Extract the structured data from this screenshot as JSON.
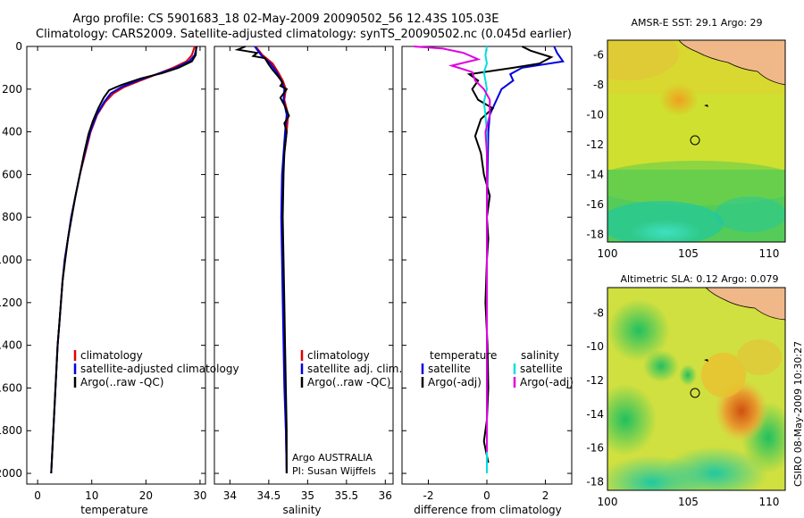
{
  "title": {
    "line1": "Argo profile: CS 5901683_18 02-May-2009 20090502_56 12.43S 105.03E",
    "line2": "Climatology: CARS2009. Satellite-adjusted climatology: synTS_20090502.nc (0.045d earlier)"
  },
  "side_label": "CSIRO 08-May-2009 10:30:27",
  "chart_data": [
    {
      "type": "line",
      "id": "temperature",
      "xlabel": "temperature",
      "xlim": [
        -2,
        31
      ],
      "ylim": [
        2050,
        0
      ],
      "xticks": [
        0,
        10,
        20,
        30
      ],
      "yticks": [
        0,
        200,
        400,
        600,
        800,
        1000,
        1200,
        1400,
        1600,
        1800,
        2000
      ],
      "legend": [
        "climatology",
        "satellite-adjusted climatology",
        "Argo(..raw -QC)"
      ],
      "legend_colors": [
        "#e00000",
        "#0000e0",
        "#000000"
      ],
      "series": [
        {
          "name": "climatology",
          "color": "#e00000",
          "points": [
            [
              29,
              0
            ],
            [
              28.5,
              40
            ],
            [
              27.5,
              70
            ],
            [
              25,
              100
            ],
            [
              22,
              130
            ],
            [
              19,
              160
            ],
            [
              16,
              190
            ],
            [
              14,
              220
            ],
            [
              12.5,
              260
            ],
            [
              11,
              320
            ],
            [
              9.8,
              400
            ],
            [
              8.8,
              500
            ],
            [
              7.8,
              600
            ],
            [
              7,
              700
            ],
            [
              6.2,
              800
            ],
            [
              5.6,
              900
            ],
            [
              5,
              1000
            ],
            [
              4.6,
              1100
            ],
            [
              4.3,
              1200
            ],
            [
              4,
              1300
            ],
            [
              3.7,
              1400
            ],
            [
              3.5,
              1500
            ],
            [
              3.3,
              1600
            ],
            [
              3.1,
              1700
            ],
            [
              2.9,
              1800
            ],
            [
              2.7,
              1900
            ],
            [
              2.5,
              2000
            ]
          ]
        },
        {
          "name": "satellite-adjusted climatology",
          "color": "#0000e0",
          "points": [
            [
              29.4,
              0
            ],
            [
              29,
              40
            ],
            [
              28,
              70
            ],
            [
              25.5,
              100
            ],
            [
              22,
              130
            ],
            [
              18.5,
              160
            ],
            [
              15.5,
              190
            ],
            [
              13.5,
              220
            ],
            [
              12.3,
              260
            ],
            [
              10.9,
              320
            ],
            [
              9.7,
              400
            ],
            [
              8.7,
              500
            ],
            [
              7.8,
              600
            ],
            [
              7,
              700
            ],
            [
              6.2,
              800
            ],
            [
              5.6,
              900
            ],
            [
              5,
              1000
            ],
            [
              4.6,
              1100
            ],
            [
              4.3,
              1200
            ],
            [
              4,
              1300
            ],
            [
              3.7,
              1400
            ],
            [
              3.5,
              1500
            ],
            [
              3.3,
              1600
            ],
            [
              3.1,
              1700
            ],
            [
              2.9,
              1800
            ],
            [
              2.7,
              1900
            ],
            [
              2.5,
              2000
            ]
          ]
        },
        {
          "name": "Argo(..raw -QC)",
          "color": "#000000",
          "points": [
            [
              29.3,
              0
            ],
            [
              29.2,
              40
            ],
            [
              28.5,
              70
            ],
            [
              26,
              100
            ],
            [
              23,
              125
            ],
            [
              19,
              150
            ],
            [
              15.5,
              180
            ],
            [
              13.2,
              205
            ],
            [
              12.2,
              240
            ],
            [
              11.2,
              290
            ],
            [
              10.2,
              350
            ],
            [
              9.4,
              410
            ],
            [
              8.6,
              500
            ],
            [
              7.8,
              600
            ],
            [
              7,
              700
            ],
            [
              6.3,
              800
            ],
            [
              5.6,
              900
            ],
            [
              5.1,
              1000
            ],
            [
              4.6,
              1100
            ],
            [
              4.3,
              1200
            ],
            [
              4,
              1300
            ],
            [
              3.7,
              1400
            ],
            [
              3.5,
              1500
            ],
            [
              3.3,
              1600
            ],
            [
              3.1,
              1700
            ],
            [
              2.9,
              1800
            ],
            [
              2.7,
              1900
            ],
            [
              2.5,
              2000
            ]
          ]
        }
      ]
    },
    {
      "type": "line",
      "id": "salinity",
      "xlabel": "salinity",
      "xlim": [
        33.8,
        36.1
      ],
      "ylim": [
        2050,
        0
      ],
      "xticks": [
        34,
        34.5,
        35,
        35.5,
        36
      ],
      "xticklabels": [
        "34",
        "34.5",
        "35",
        "35.5",
        "36"
      ],
      "legend": [
        "climatology",
        "satellite adj. clim.",
        "Argo(..raw -QC)"
      ],
      "legend_colors": [
        "#e00000",
        "#0000e0",
        "#000000"
      ],
      "annotation": [
        "Argo AUSTRALIA",
        "PI: Susan Wijffels"
      ],
      "series": [
        {
          "name": "climatology",
          "color": "#e00000",
          "points": [
            [
              34.33,
              0
            ],
            [
              34.42,
              40
            ],
            [
              34.55,
              80
            ],
            [
              34.62,
              120
            ],
            [
              34.68,
              160
            ],
            [
              34.72,
              200
            ],
            [
              34.7,
              250
            ],
            [
              34.75,
              320
            ],
            [
              34.73,
              400
            ],
            [
              34.7,
              500
            ],
            [
              34.68,
              600
            ],
            [
              34.67,
              800
            ],
            [
              34.68,
              1000
            ],
            [
              34.69,
              1200
            ],
            [
              34.7,
              1400
            ],
            [
              34.71,
              1600
            ],
            [
              34.72,
              1800
            ],
            [
              34.73,
              2000
            ]
          ]
        },
        {
          "name": "satellite adj. clim.",
          "color": "#0000e0",
          "points": [
            [
              34.32,
              0
            ],
            [
              34.4,
              40
            ],
            [
              34.52,
              80
            ],
            [
              34.6,
              120
            ],
            [
              34.66,
              160
            ],
            [
              34.7,
              200
            ],
            [
              34.69,
              250
            ],
            [
              34.73,
              320
            ],
            [
              34.71,
              400
            ],
            [
              34.69,
              500
            ],
            [
              34.67,
              600
            ],
            [
              34.66,
              800
            ],
            [
              34.67,
              1000
            ],
            [
              34.68,
              1200
            ],
            [
              34.69,
              1400
            ],
            [
              34.7,
              1600
            ],
            [
              34.72,
              1800
            ],
            [
              34.73,
              2000
            ]
          ]
        },
        {
          "name": "Argo(..raw -QC)",
          "color": "#000000",
          "points": [
            [
              34.2,
              0
            ],
            [
              34.1,
              15
            ],
            [
              34.35,
              30
            ],
            [
              34.3,
              45
            ],
            [
              34.45,
              55
            ],
            [
              34.5,
              85
            ],
            [
              34.55,
              110
            ],
            [
              34.62,
              140
            ],
            [
              34.68,
              170
            ],
            [
              34.65,
              185
            ],
            [
              34.73,
              200
            ],
            [
              34.65,
              240
            ],
            [
              34.7,
              275
            ],
            [
              34.76,
              325
            ],
            [
              34.7,
              360
            ],
            [
              34.73,
              400
            ],
            [
              34.7,
              500
            ],
            [
              34.69,
              600
            ],
            [
              34.68,
              800
            ],
            [
              34.69,
              1000
            ],
            [
              34.7,
              1200
            ],
            [
              34.71,
              1400
            ],
            [
              34.72,
              1600
            ],
            [
              34.73,
              1800
            ],
            [
              34.73,
              2000
            ]
          ]
        }
      ]
    },
    {
      "type": "line",
      "id": "difference",
      "xlabel": "difference from climatology",
      "xlim": [
        -2.9,
        2.9
      ],
      "ylim": [
        2050,
        0
      ],
      "xticks": [
        -2,
        0,
        2
      ],
      "legend_titles": [
        "temperature",
        "salinity"
      ],
      "legend": [
        "satellite",
        "Argo(-adj)",
        "satellite",
        "Argo(-adj)"
      ],
      "legend_colors": [
        "#0000e0",
        "#000000",
        "#00e0e0",
        "#e000e0"
      ],
      "series": [
        {
          "name": "temperature satellite",
          "color": "#0000e0",
          "points": [
            [
              2.3,
              0
            ],
            [
              2.4,
              30
            ],
            [
              2.6,
              70
            ],
            [
              1.2,
              100
            ],
            [
              0.8,
              130
            ],
            [
              0.9,
              160
            ],
            [
              0.5,
              200
            ],
            [
              0.3,
              260
            ],
            [
              0.1,
              320
            ],
            [
              0.05,
              400
            ],
            [
              0.02,
              600
            ],
            [
              0,
              800
            ],
            [
              0,
              1000
            ],
            [
              0,
              1200
            ],
            [
              0,
              1400
            ],
            [
              0,
              1600
            ],
            [
              0,
              1800
            ],
            [
              0,
              2000
            ]
          ]
        },
        {
          "name": "temperature Argo(-adj)",
          "color": "#000000",
          "points": [
            [
              1.2,
              0
            ],
            [
              1.5,
              20
            ],
            [
              2.2,
              50
            ],
            [
              1.8,
              80
            ],
            [
              0.9,
              100
            ],
            [
              -0.6,
              130
            ],
            [
              -0.3,
              160
            ],
            [
              -0.5,
              200
            ],
            [
              -0.3,
              250
            ],
            [
              0.2,
              290
            ],
            [
              -0.2,
              340
            ],
            [
              -0.4,
              420
            ],
            [
              -0.2,
              500
            ],
            [
              -0.1,
              600
            ],
            [
              0.1,
              700
            ],
            [
              0,
              800
            ],
            [
              0.05,
              900
            ],
            [
              0,
              1000
            ],
            [
              -0.05,
              1200
            ],
            [
              0.02,
              1400
            ],
            [
              0.05,
              1600
            ],
            [
              0,
              1750
            ],
            [
              -0.1,
              1850
            ],
            [
              0.05,
              1950
            ]
          ]
        },
        {
          "name": "salinity satellite",
          "color": "#00e0e0",
          "points": [
            [
              0,
              0
            ],
            [
              -0.05,
              40
            ],
            [
              0,
              80
            ],
            [
              -0.1,
              120
            ],
            [
              -0.05,
              160
            ],
            [
              0,
              200
            ],
            [
              -0.1,
              260
            ],
            [
              -0.05,
              320
            ],
            [
              0,
              400
            ],
            [
              0,
              600
            ],
            [
              0,
              800
            ],
            [
              0,
              1000
            ],
            [
              0,
              1200
            ],
            [
              0,
              1400
            ],
            [
              0,
              1600
            ],
            [
              0,
              1800
            ],
            [
              0,
              2000
            ]
          ]
        },
        {
          "name": "salinity Argo(-adj)",
          "color": "#e000e0",
          "points": [
            [
              -2.5,
              0
            ],
            [
              -1.5,
              10
            ],
            [
              -0.8,
              30
            ],
            [
              -0.3,
              60
            ],
            [
              -1.2,
              90
            ],
            [
              -0.5,
              120
            ],
            [
              -0.4,
              160
            ],
            [
              -0.1,
              200
            ],
            [
              0.1,
              250
            ],
            [
              0.1,
              320
            ],
            [
              -0.05,
              400
            ],
            [
              0,
              500
            ],
            [
              0,
              700
            ],
            [
              0,
              900
            ],
            [
              0,
              1100
            ],
            [
              0,
              1300
            ],
            [
              0,
              1500
            ],
            [
              0,
              1700
            ],
            [
              0,
              1900
            ]
          ]
        }
      ]
    },
    {
      "type": "heatmap",
      "id": "sst-map",
      "title": "AMSR-E SST: 29.1 Argo: 29",
      "xlim": [
        100,
        111
      ],
      "ylim": [
        -18.5,
        -5
      ],
      "xticks": [
        100,
        105,
        110
      ],
      "yticks": [
        -6,
        -8,
        -10,
        -12,
        -14,
        -16,
        -18
      ],
      "argo_position": [
        105.03,
        -12.43
      ]
    },
    {
      "type": "heatmap",
      "id": "sla-map",
      "title": "Altimetric SLA: 0.12 Argo: 0.079",
      "xlim": [
        100,
        111
      ],
      "ylim": [
        -18.5,
        -6.5
      ],
      "xticks": [
        100,
        105,
        110
      ],
      "yticks": [
        -8,
        -10,
        -12,
        -14,
        -16,
        -18
      ],
      "argo_position": [
        105.03,
        -12.43
      ]
    }
  ]
}
